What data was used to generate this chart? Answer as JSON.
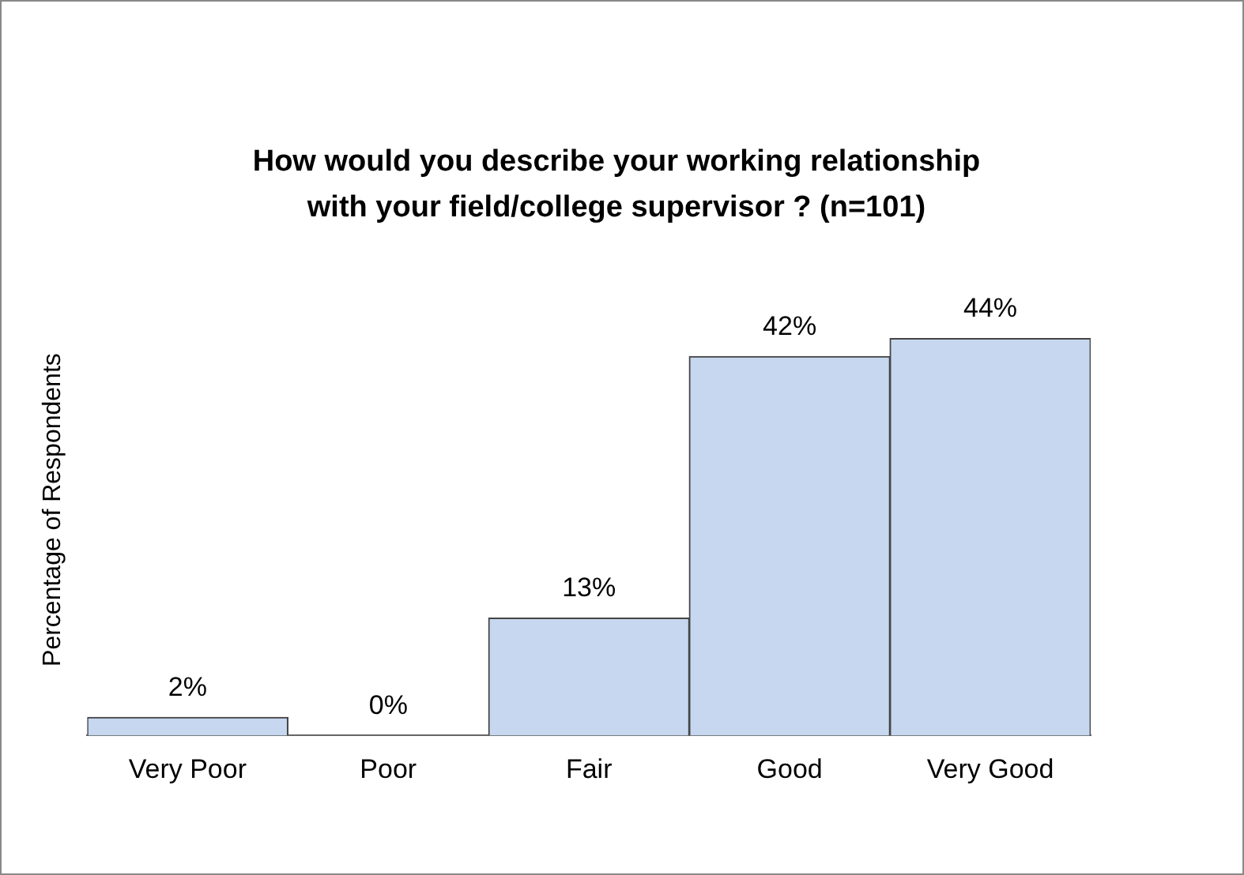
{
  "chart_data": {
    "type": "bar",
    "title": "How would you describe your working relationship with your field/college supervisor ? (n=101)",
    "ylabel": "Percentage of Respondents",
    "categories": [
      "Very Poor",
      "Poor",
      "Fair",
      "Good",
      "Very Good"
    ],
    "values": [
      2,
      0,
      13,
      42,
      44
    ],
    "value_labels": [
      "2%",
      "0%",
      "13%",
      "42%",
      "44%"
    ],
    "color": "#c6d7ef",
    "tick_labels": "x",
    "grid": false,
    "legend": false
  }
}
